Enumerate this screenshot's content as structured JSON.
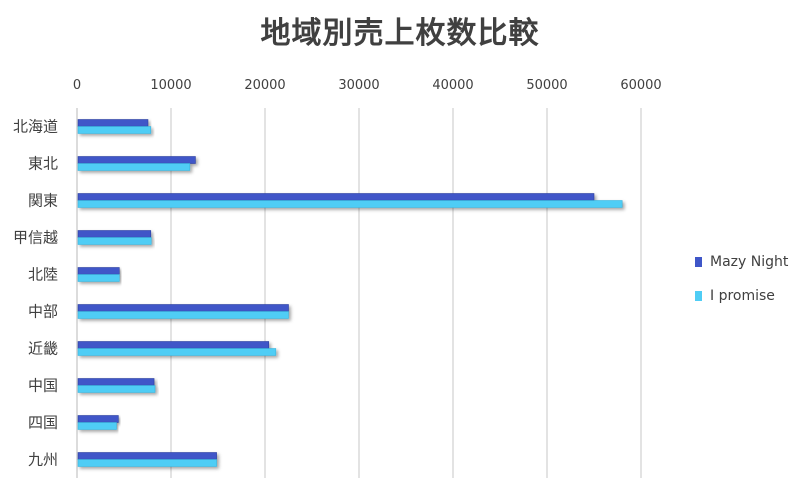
{
  "chart_data": {
    "type": "bar",
    "orientation": "horizontal",
    "title": "地域別売上枚数比較",
    "xlabel": "",
    "ylabel": "",
    "xlim": [
      0,
      60000
    ],
    "ticks": [
      "0",
      "10000",
      "20000",
      "30000",
      "40000",
      "50000",
      "60000"
    ],
    "tick_values": [
      0,
      10000,
      20000,
      30000,
      40000,
      50000,
      60000
    ],
    "axis_position": "top",
    "grid": true,
    "legend_position": "right",
    "categories": [
      "北海道",
      "東北",
      "関東",
      "甲信越",
      "北陸",
      "中部",
      "近畿",
      "中国",
      "四国",
      "九州"
    ],
    "series": [
      {
        "name": "Mazy Night",
        "color": "#3f56c8",
        "values": [
          7550,
          12600,
          55000,
          7850,
          4500,
          22500,
          20400,
          8200,
          4400,
          14850
        ]
      },
      {
        "name": "I promise",
        "color": "#4fcdf5",
        "values": [
          7850,
          12000,
          58000,
          7900,
          4500,
          22500,
          21150,
          8300,
          4200,
          14850
        ]
      }
    ]
  }
}
